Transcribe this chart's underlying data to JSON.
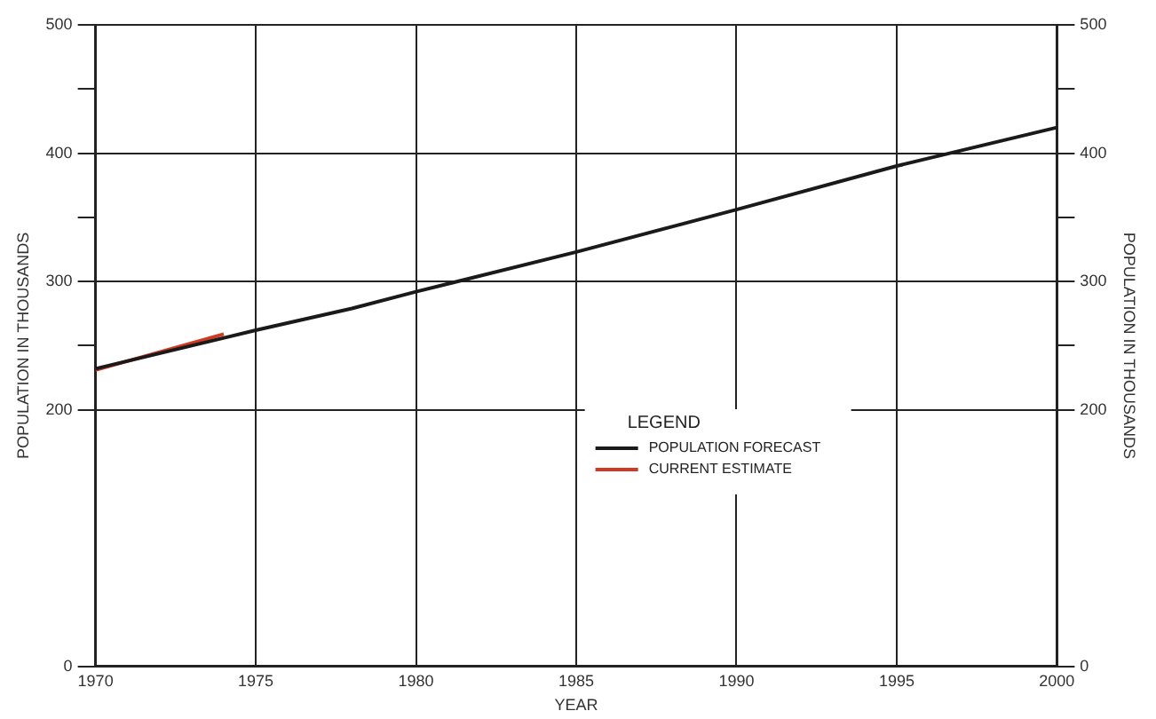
{
  "chart_data": {
    "type": "line",
    "xlabel": "YEAR",
    "ylabel": "POPULATION IN THOUSANDS",
    "y2label": "POPULATION IN THOUSANDS",
    "legend_title": "LEGEND",
    "legend": "center right",
    "grid": true,
    "marker": "none",
    "line_style": "solid",
    "xlim": [
      1970,
      2000
    ],
    "xticks": [
      1970,
      1975,
      1980,
      1985,
      1990,
      1995,
      2000
    ],
    "ylim": [
      0,
      500
    ],
    "yticks": [
      0,
      200,
      {
        "value": 250,
        "label": null
      },
      300,
      {
        "value": 350,
        "label": null
      },
      400,
      {
        "value": 450,
        "label": null
      },
      500
    ],
    "y2lim": [
      0,
      500
    ],
    "y2ticks": [
      0,
      200,
      {
        "value": 250,
        "label": null
      },
      300,
      {
        "value": 350,
        "label": null
      },
      400,
      {
        "value": 450,
        "label": null
      },
      500
    ],
    "series": [
      {
        "name": "POPULATION FORECAST",
        "color": "#1a1a1a",
        "x": [
          1970,
          1975,
          1978,
          1980,
          1985,
          1990,
          1995,
          2000
        ],
        "values": [
          232,
          262,
          279,
          292,
          323,
          356,
          390,
          420
        ]
      },
      {
        "name": "CURRENT ESTIMATE",
        "color": "#d03a22",
        "x": [
          1970,
          1974
        ],
        "values": [
          231,
          259
        ]
      }
    ]
  }
}
